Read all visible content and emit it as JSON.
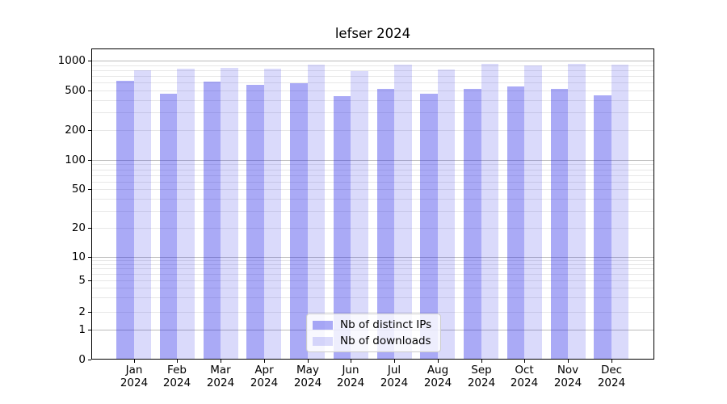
{
  "chart_data": {
    "type": "bar",
    "title": "lefser 2024",
    "categories": [
      "Jan",
      "Feb",
      "Mar",
      "Apr",
      "May",
      "Jun",
      "Jul",
      "Aug",
      "Sep",
      "Oct",
      "Nov",
      "Dec"
    ],
    "year_label": "2024",
    "series": [
      {
        "name": "Nb of distinct IPs",
        "color": "rgba(25,25,230,0.37)",
        "values": [
          635,
          470,
          625,
          580,
          600,
          440,
          525,
          465,
          520,
          560,
          520,
          455
        ]
      },
      {
        "name": "Nb of downloads",
        "color": "rgba(25,25,230,0.16)",
        "values": [
          810,
          845,
          855,
          845,
          920,
          790,
          915,
          815,
          945,
          905,
          930,
          920
        ]
      }
    ],
    "yscale": "symlog",
    "ylim": [
      0,
      1325
    ],
    "ytick_labels": [
      0,
      1,
      2,
      5,
      10,
      20,
      50,
      100,
      200,
      500,
      1000
    ],
    "major_gridlines": [
      1,
      10,
      100,
      1000
    ],
    "grid": true,
    "legend_position": "lower-center",
    "colors": {
      "major_grid": "#bbbbbb",
      "minor_grid": "#e7e7e7",
      "axis": "#000000",
      "text": "#000000"
    }
  }
}
